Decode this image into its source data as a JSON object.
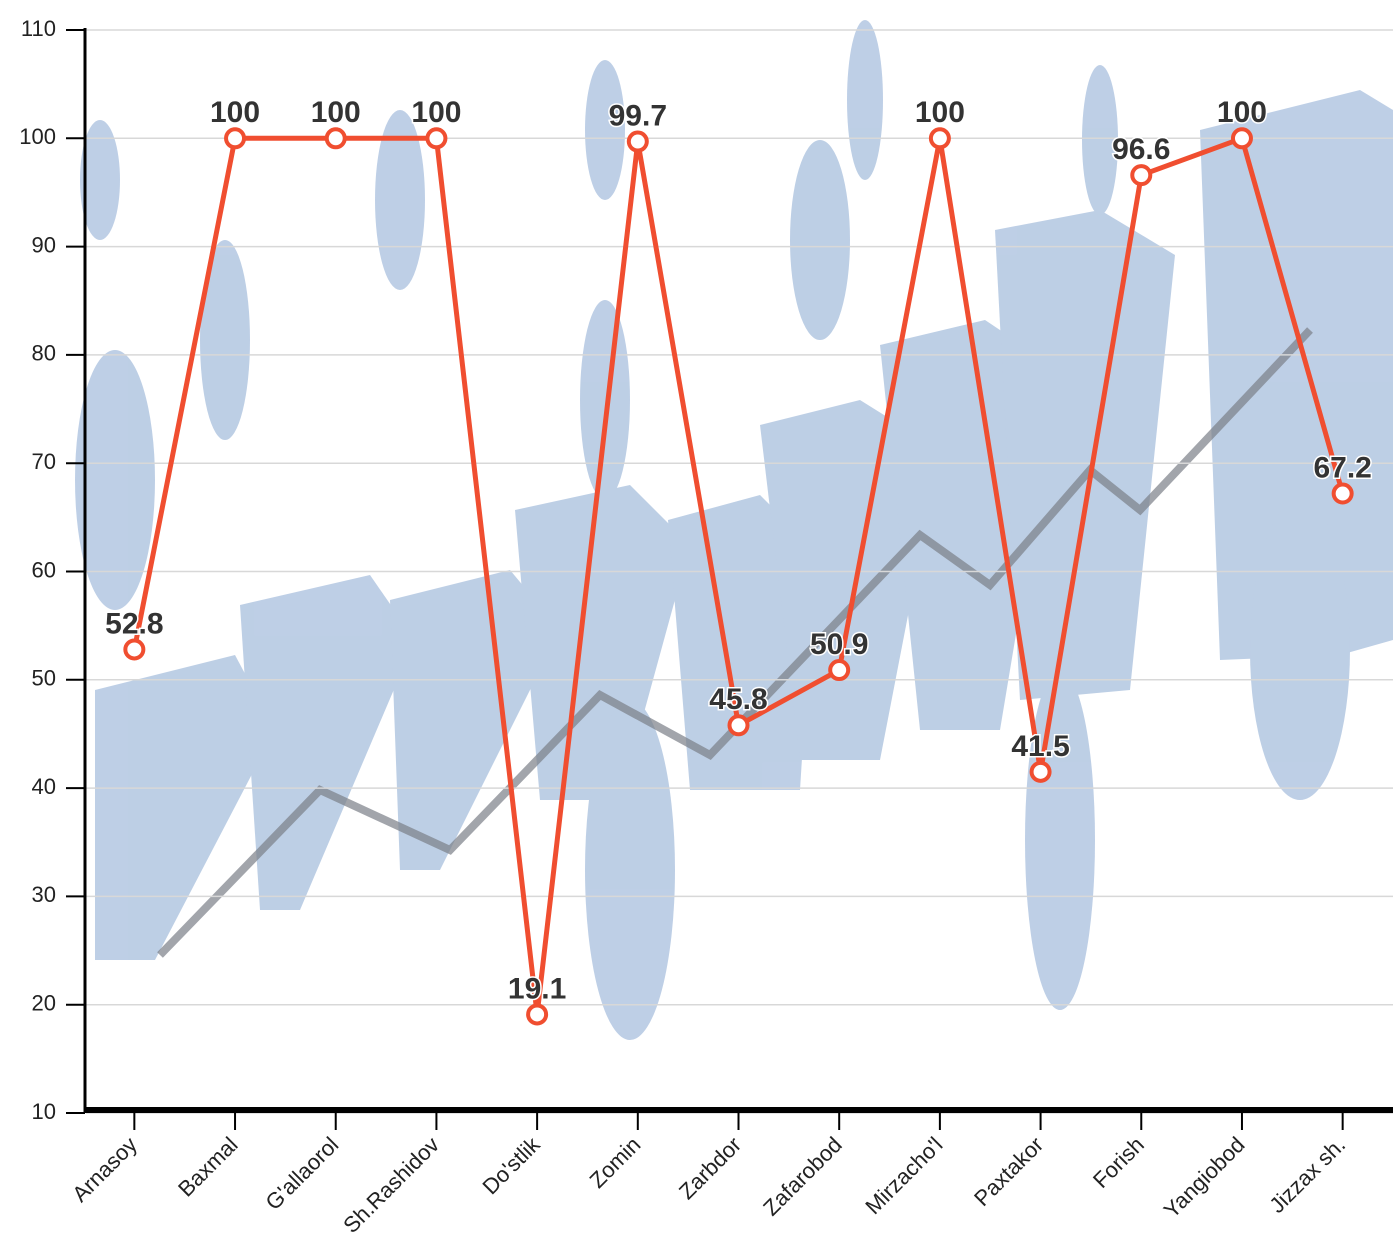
{
  "chart_data": {
    "type": "line",
    "categories": [
      "Arnasoy",
      "Baxmal",
      "G'allaorol",
      "Sh.Rashidov",
      "Do'stlik",
      "Zomin",
      "Zarbdor",
      "Zafarobod",
      "Mirzacho'l",
      "Paxtakor",
      "Forish",
      "Yangiobod",
      "Jizzax sh."
    ],
    "values": [
      52.8,
      100,
      100,
      100,
      19.1,
      99.7,
      45.8,
      50.9,
      100,
      41.5,
      96.6,
      100,
      67.2
    ],
    "color": "#f04e30",
    "ylim": [
      10,
      110
    ],
    "yticks": [
      10,
      20,
      30,
      40,
      50,
      60,
      70,
      80,
      90,
      100,
      110
    ],
    "grid": true
  }
}
